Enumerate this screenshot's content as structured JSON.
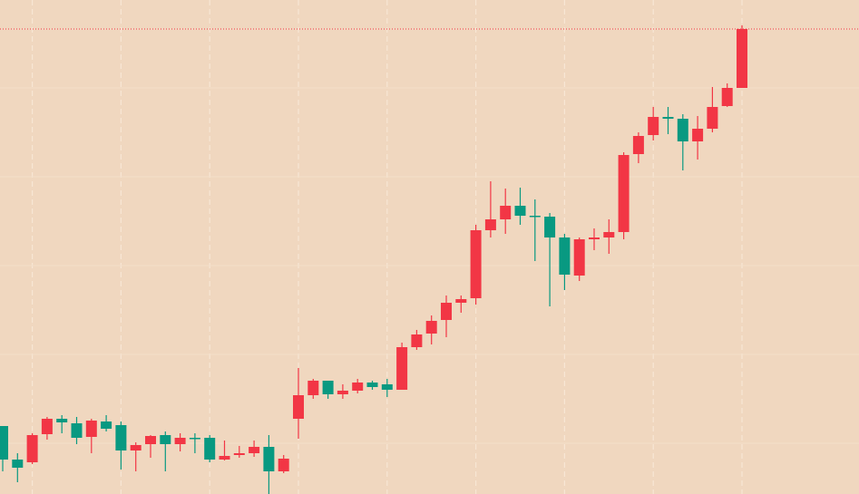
{
  "chart_data": {
    "type": "candlestick",
    "open": [
      75,
      38,
      35,
      66,
      83,
      78,
      63,
      80,
      76,
      48,
      55,
      65,
      55,
      62,
      62,
      38,
      43,
      45,
      52,
      25,
      83,
      109,
      125,
      110,
      114,
      123,
      121,
      115,
      162,
      177,
      192,
      211,
      216,
      291,
      303,
      318,
      307,
      306,
      283,
      241,
      281,
      283,
      289,
      375,
      396,
      416,
      414,
      389,
      403,
      428,
      448
    ],
    "high": [
      75,
      45,
      67,
      85,
      87,
      85,
      83,
      87,
      80,
      57,
      65,
      69,
      67,
      67,
      65,
      59,
      53,
      59,
      65,
      43,
      139,
      127,
      125,
      121,
      127,
      125,
      127,
      167,
      181,
      197,
      219,
      219,
      297,
      345,
      337,
      338,
      325,
      310,
      287,
      283,
      293,
      303,
      377,
      399,
      427,
      427,
      419,
      417,
      449,
      453,
      517
    ],
    "low": [
      25,
      13,
      33,
      60,
      67,
      55,
      45,
      69,
      27,
      25,
      40,
      25,
      47,
      45,
      35,
      37,
      40,
      41,
      0,
      23,
      61,
      105,
      105,
      105,
      111,
      115,
      107,
      115,
      159,
      165,
      173,
      200,
      209,
      283,
      287,
      297,
      257,
      207,
      225,
      235,
      269,
      265,
      281,
      365,
      390,
      397,
      357,
      369,
      399,
      427,
      448
    ],
    "close": [
      38,
      29,
      65,
      83,
      79,
      62,
      81,
      72,
      48,
      54,
      64,
      55,
      62,
      61,
      38,
      42,
      45,
      52,
      25,
      39,
      109,
      125,
      110,
      114,
      123,
      118,
      115,
      162,
      176,
      191,
      211,
      215,
      291,
      303,
      318,
      307,
      306,
      283,
      242,
      281,
      283,
      289,
      374,
      395,
      416,
      414,
      389,
      403,
      427,
      448,
      513
    ],
    "up_color": "#f23645",
    "down_color": "#089981",
    "ylim": [
      0,
      545
    ],
    "last_price_line": true
  }
}
